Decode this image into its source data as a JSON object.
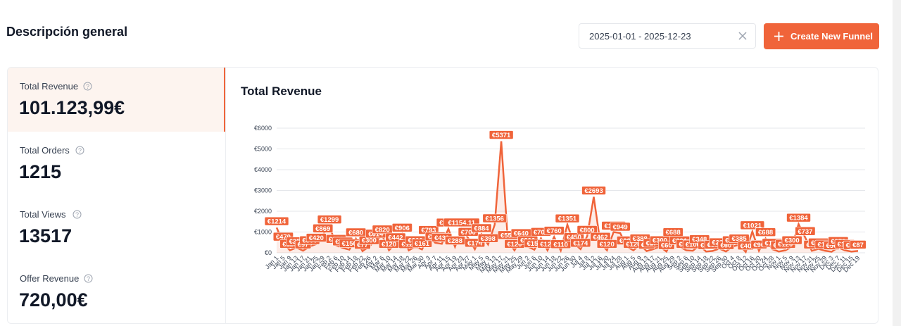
{
  "header": {
    "title": "Descripción general",
    "date_range": "2025-01-01 - 2025-12-23",
    "button": "Create New Funnel"
  },
  "metrics": [
    {
      "label": "Total Revenue",
      "value": "101.123,99€"
    },
    {
      "label": "Total Orders",
      "value": "1215"
    },
    {
      "label": "Total Views",
      "value": "13517"
    },
    {
      "label": "Offer Revenue",
      "value": "720,00€"
    }
  ],
  "chart_data": {
    "type": "line",
    "title": "Total Revenue",
    "color": "#f0643a",
    "grid": true,
    "ylim": [
      0,
      6000
    ],
    "yticks": [
      {
        "value": 0,
        "label": "€0"
      },
      {
        "value": 1000,
        "label": "€1000"
      },
      {
        "value": 2000,
        "label": "€2000"
      },
      {
        "value": 3000,
        "label": "€3000"
      },
      {
        "value": 4000,
        "label": "€4000"
      },
      {
        "value": 5000,
        "label": "€5000"
      },
      {
        "value": 6000,
        "label": "€6000"
      }
    ],
    "categories": [
      "Jan 1",
      "Jan 5",
      "Jan 9",
      "Jan 13",
      "Jan 17",
      "Jan 21",
      "Jan 25",
      "Jan 29",
      "Feb 2",
      "Feb 6",
      "Feb 10",
      "Feb 14",
      "Feb 18",
      "Feb 22",
      "Feb 26",
      "Mar 2",
      "Mar 6",
      "Mar 10",
      "Mar 14",
      "Mar 18",
      "Mar 22",
      "Mar 26",
      "Mar 30",
      "Apr 3",
      "Apr 7",
      "Apr 11",
      "Apr 15",
      "Apr 19",
      "Apr 23",
      "Apr 27",
      "May 1",
      "May 5",
      "May 9",
      "May 13",
      "May 17",
      "May 21",
      "May 25",
      "May 29",
      "Jun 2",
      "Jun 6",
      "Jun 10",
      "Jun 14",
      "Jun 18",
      "Jun 22",
      "Jun 26",
      "Jun 30",
      "Jul 4",
      "Jul 8",
      "Jul 12",
      "Jul 16",
      "Jul 20",
      "Jul 24",
      "Jul 28",
      "Aug 1",
      "Aug 5",
      "Aug 9",
      "Aug 13",
      "Aug 17",
      "Aug 21",
      "Aug 25",
      "Aug 29",
      "Sep 2",
      "Sep 6",
      "Sep 10",
      "Sep 14",
      "Sep 18",
      "Sep 22",
      "Sep 26",
      "Sep 30",
      "Oct 4",
      "Oct 8",
      "Oct 12",
      "Oct 16",
      "Oct 20",
      "Oct 24",
      "Oct 28",
      "Nov 1",
      "Nov 5",
      "Nov 9",
      "Nov 13",
      "Nov 17",
      "Nov 21",
      "Nov 25",
      "Nov 29",
      "Dec 3",
      "Dec 7",
      "Dec 11",
      "Dec 15",
      "Dec 19"
    ],
    "values": [
      1214,
      470,
      120,
      250,
      97,
      300,
      420,
      869,
      1299,
      360,
      238,
      150,
      680,
      77,
      300,
      614,
      820,
      120,
      442,
      906,
      114,
      300,
      161,
      793,
      480,
      430,
      1150,
      288,
      1154.11,
      700,
      174,
      884,
      398,
      1356,
      5371,
      550,
      120,
      640,
      300,
      150,
      700,
      120,
      760,
      110,
      1351,
      450,
      174,
      800,
      2693,
      462,
      120,
      1000,
      949,
      288,
      120,
      388,
      80,
      174,
      300,
      60,
      688,
      291,
      120,
      100,
      348,
      60,
      87,
      200,
      60,
      300,
      385,
      40,
      1021,
      90,
      688,
      174,
      60,
      120,
      300,
      1384,
      737,
      90,
      191,
      100,
      50,
      259,
      120,
      60,
      87
    ],
    "value_labels": [
      "€1214",
      "€470",
      "€120",
      "€250",
      "€97",
      "€300",
      "€420",
      "€869",
      "€1299",
      "€360",
      "€238",
      "€150",
      "€680",
      "€77",
      "€300",
      "€614",
      "€820",
      "€120",
      "€442",
      "€906",
      "€114",
      "€300",
      "€161",
      "€793",
      "€480",
      "€430",
      "€1150",
      "€288",
      "€1154.11",
      "€700",
      "€174",
      "€884",
      "€398",
      "€1356",
      "€5371",
      "€550",
      "€120",
      "€640",
      "€300",
      "€150",
      "€700",
      "€120",
      "€760",
      "€110",
      "€1351",
      "€450",
      "€174",
      "€800",
      "€2693",
      "€462",
      "€120",
      "€1000",
      "€949",
      "€288",
      "€120",
      "€388",
      "€80",
      "€174",
      "€300",
      "€60",
      "€688",
      "€291",
      "€120",
      "€100",
      "€348",
      "€60",
      "€87",
      "€200",
      "€60",
      "€300",
      "€385",
      "€40",
      "€1021",
      "€90",
      "€688",
      "€174",
      "€60",
      "€120",
      "€300",
      "€1384",
      "€737",
      "€90",
      "€191",
      "€100",
      "€50",
      "€259",
      "€120",
      "€60",
      "€87"
    ]
  }
}
